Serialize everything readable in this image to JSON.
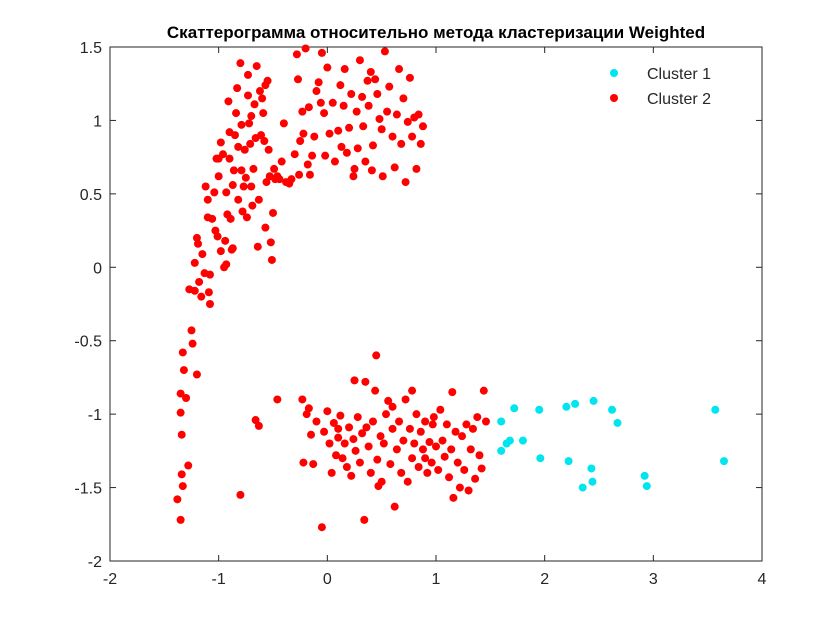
{
  "chart_data": {
    "type": "scatter",
    "title": "Скаттерограмма относительно метода кластеризации Weighted",
    "xlabel": "",
    "ylabel": "",
    "xlim": [
      -2,
      4
    ],
    "ylim": [
      -2,
      1.5
    ],
    "xticks": [
      -2,
      -1,
      0,
      1,
      2,
      3,
      4
    ],
    "xtick_labels": [
      "-2",
      "-1",
      "0",
      "1",
      "2",
      "3",
      "4"
    ],
    "yticks": [
      -2,
      -1.5,
      -1,
      -0.5,
      0,
      0.5,
      1,
      1.5
    ],
    "ytick_labels": [
      "-2",
      "-1.5",
      "-1",
      "-0.5",
      "0",
      "0.5",
      "1",
      "1.5"
    ],
    "grid": false,
    "legend_position": "top-right",
    "series": [
      {
        "name": "Cluster 1",
        "color": "#00e5ee",
        "points": [
          [
            1.6,
            -1.05
          ],
          [
            1.6,
            -1.25
          ],
          [
            1.65,
            -1.2
          ],
          [
            1.68,
            -1.18
          ],
          [
            1.72,
            -0.96
          ],
          [
            1.8,
            -1.18
          ],
          [
            1.95,
            -0.97
          ],
          [
            1.96,
            -1.3
          ],
          [
            2.2,
            -0.95
          ],
          [
            2.22,
            -1.32
          ],
          [
            2.28,
            -0.93
          ],
          [
            2.35,
            -1.5
          ],
          [
            2.43,
            -1.37
          ],
          [
            2.44,
            -1.46
          ],
          [
            2.45,
            -0.91
          ],
          [
            2.62,
            -0.97
          ],
          [
            2.67,
            -1.06
          ],
          [
            2.92,
            -1.42
          ],
          [
            2.94,
            -1.49
          ],
          [
            3.57,
            -0.97
          ],
          [
            3.65,
            -1.32
          ]
        ]
      },
      {
        "name": "Cluster 2",
        "color": "#ff0000",
        "points": [
          [
            -1.38,
            -1.58
          ],
          [
            -1.35,
            -1.72
          ],
          [
            -1.35,
            -0.86
          ],
          [
            -1.35,
            -0.99
          ],
          [
            -1.34,
            -1.14
          ],
          [
            -1.34,
            -1.41
          ],
          [
            -1.33,
            -1.49
          ],
          [
            -1.32,
            -0.7
          ],
          [
            -1.33,
            -0.58
          ],
          [
            -1.3,
            -0.89
          ],
          [
            -1.28,
            -1.35
          ],
          [
            -1.27,
            -0.15
          ],
          [
            -1.25,
            -0.43
          ],
          [
            -1.24,
            -0.52
          ],
          [
            -1.22,
            -0.16
          ],
          [
            -1.22,
            0.03
          ],
          [
            -1.2,
            -0.73
          ],
          [
            -1.2,
            0.2
          ],
          [
            -1.19,
            0.16
          ],
          [
            -1.18,
            -0.1
          ],
          [
            -1.16,
            -0.2
          ],
          [
            -1.15,
            0.09
          ],
          [
            -1.13,
            -0.04
          ],
          [
            -1.12,
            0.55
          ],
          [
            -1.1,
            0.46
          ],
          [
            -1.1,
            0.34
          ],
          [
            -1.09,
            -0.17
          ],
          [
            -1.08,
            -0.25
          ],
          [
            -1.08,
            -0.05
          ],
          [
            -1.06,
            0.33
          ],
          [
            -1.04,
            0.51
          ],
          [
            -1.03,
            0.25
          ],
          [
            -1.02,
            0.74
          ],
          [
            -1.01,
            0.21
          ],
          [
            -1.0,
            0.62
          ],
          [
            -1.0,
            0.74
          ],
          [
            -0.98,
            0.85
          ],
          [
            -0.98,
            0.11
          ],
          [
            -0.96,
            0.77
          ],
          [
            -0.95,
            0.0
          ],
          [
            -0.94,
            0.18
          ],
          [
            -0.93,
            0.02
          ],
          [
            -0.93,
            0.51
          ],
          [
            -0.92,
            0.36
          ],
          [
            -0.91,
            1.13
          ],
          [
            -0.9,
            0.92
          ],
          [
            -0.9,
            0.74
          ],
          [
            -0.89,
            0.33
          ],
          [
            -0.88,
            0.12
          ],
          [
            -0.87,
            0.56
          ],
          [
            -0.87,
            0.13
          ],
          [
            -0.86,
            0.66
          ],
          [
            -0.85,
            0.9
          ],
          [
            -0.84,
            1.05
          ],
          [
            -0.83,
            1.22
          ],
          [
            -0.82,
            0.46
          ],
          [
            -0.82,
            0.82
          ],
          [
            -0.8,
            1.39
          ],
          [
            -0.79,
            0.97
          ],
          [
            -0.79,
            0.66
          ],
          [
            -0.78,
            0.38
          ],
          [
            -0.77,
            0.55
          ],
          [
            -0.76,
            0.8
          ],
          [
            -0.75,
            0.61
          ],
          [
            -0.74,
            0.34
          ],
          [
            -0.73,
            1.31
          ],
          [
            -0.72,
            0.98
          ],
          [
            -0.71,
            0.84
          ],
          [
            -0.7,
            1.03
          ],
          [
            -0.7,
            0.55
          ],
          [
            -0.69,
            0.42
          ],
          [
            -0.68,
            0.67
          ],
          [
            -0.67,
            1.11
          ],
          [
            -0.66,
            0.88
          ],
          [
            -0.65,
            1.37
          ],
          [
            -0.64,
            0.14
          ],
          [
            -0.63,
            0.46
          ],
          [
            -0.62,
            1.2
          ],
          [
            -0.61,
            0.9
          ],
          [
            -0.6,
            1.15
          ],
          [
            -0.59,
            1.05
          ],
          [
            -0.58,
            0.86
          ],
          [
            -0.57,
            1.24
          ],
          [
            -0.57,
            0.27
          ],
          [
            -0.56,
            0.58
          ],
          [
            -0.55,
            1.27
          ],
          [
            -0.54,
            0.8
          ],
          [
            -0.53,
            0.62
          ],
          [
            -0.52,
            0.17
          ],
          [
            -0.51,
            0.05
          ],
          [
            -0.5,
            0.37
          ],
          [
            -0.49,
            0.67
          ],
          [
            -0.48,
            0.6
          ],
          [
            -0.46,
            0.62
          ],
          [
            -0.44,
            0.6
          ],
          [
            -0.42,
            0.72
          ],
          [
            -0.4,
            0.98
          ],
          [
            -0.38,
            0.58
          ],
          [
            -0.35,
            0.57
          ],
          [
            -0.33,
            0.6
          ],
          [
            -0.3,
            0.77
          ],
          [
            -0.28,
            1.45
          ],
          [
            -0.27,
            1.28
          ],
          [
            -0.26,
            0.63
          ],
          [
            -0.25,
            0.86
          ],
          [
            -0.23,
            1.06
          ],
          [
            -0.22,
            0.91
          ],
          [
            -0.2,
            1.49
          ],
          [
            -0.18,
            0.7
          ],
          [
            -0.17,
            1.09
          ],
          [
            -0.16,
            0.63
          ],
          [
            -0.14,
            0.76
          ],
          [
            -0.12,
            0.89
          ],
          [
            -0.1,
            1.2
          ],
          [
            -0.08,
            1.26
          ],
          [
            -0.06,
            1.12
          ],
          [
            -0.05,
            1.46
          ],
          [
            -0.03,
            1.05
          ],
          [
            -0.02,
            0.76
          ],
          [
            0.0,
            1.36
          ],
          [
            0.02,
            0.91
          ],
          [
            0.05,
            1.12
          ],
          [
            0.07,
            0.72
          ],
          [
            0.1,
            0.93
          ],
          [
            0.12,
            1.24
          ],
          [
            0.13,
            0.82
          ],
          [
            0.15,
            1.1
          ],
          [
            0.16,
            1.35
          ],
          [
            0.18,
            0.78
          ],
          [
            0.2,
            0.95
          ],
          [
            0.22,
            1.18
          ],
          [
            0.24,
            0.62
          ],
          [
            0.25,
            0.67
          ],
          [
            0.27,
            1.06
          ],
          [
            0.28,
            0.81
          ],
          [
            0.3,
            1.41
          ],
          [
            0.32,
            1.16
          ],
          [
            0.33,
            0.96
          ],
          [
            0.35,
            0.72
          ],
          [
            0.37,
            1.27
          ],
          [
            0.38,
            1.1
          ],
          [
            0.4,
            1.33
          ],
          [
            0.41,
            0.66
          ],
          [
            0.42,
            0.83
          ],
          [
            0.44,
            1.28
          ],
          [
            0.46,
            1.18
          ],
          [
            0.48,
            1.01
          ],
          [
            0.5,
            0.94
          ],
          [
            0.51,
            0.62
          ],
          [
            0.53,
            1.47
          ],
          [
            0.55,
            1.06
          ],
          [
            0.57,
            1.23
          ],
          [
            0.6,
            0.89
          ],
          [
            0.62,
            0.68
          ],
          [
            0.64,
            1.04
          ],
          [
            0.66,
            1.35
          ],
          [
            0.68,
            0.84
          ],
          [
            0.7,
            1.15
          ],
          [
            0.72,
            0.58
          ],
          [
            0.74,
            0.99
          ],
          [
            0.76,
            1.29
          ],
          [
            0.78,
            0.89
          ],
          [
            0.8,
            1.02
          ],
          [
            0.82,
            0.67
          ],
          [
            0.84,
            1.04
          ],
          [
            0.86,
            0.84
          ],
          [
            0.88,
            0.96
          ],
          [
            -0.73,
            1.17
          ],
          [
            -0.66,
            -1.04
          ],
          [
            -0.63,
            -1.08
          ],
          [
            -0.8,
            -1.55
          ],
          [
            -0.46,
            -0.9
          ],
          [
            -0.23,
            -0.9
          ],
          [
            -0.22,
            -1.33
          ],
          [
            -0.19,
            -1.0
          ],
          [
            -0.17,
            -0.96
          ],
          [
            -0.15,
            -1.14
          ],
          [
            -0.13,
            -1.34
          ],
          [
            -0.1,
            -1.05
          ],
          [
            -0.05,
            -1.77
          ],
          [
            -0.03,
            -1.12
          ],
          [
            0.0,
            -0.98
          ],
          [
            0.02,
            -1.2
          ],
          [
            0.04,
            -1.4
          ],
          [
            0.06,
            -1.06
          ],
          [
            0.08,
            -1.28
          ],
          [
            0.1,
            -1.16
          ],
          [
            0.12,
            -1.01
          ],
          [
            0.14,
            -1.3
          ],
          [
            0.16,
            -1.2
          ],
          [
            0.18,
            -1.36
          ],
          [
            0.2,
            -1.09
          ],
          [
            0.22,
            -1.42
          ],
          [
            0.24,
            -1.17
          ],
          [
            0.25,
            -0.77
          ],
          [
            0.26,
            -1.25
          ],
          [
            0.28,
            -1.02
          ],
          [
            0.3,
            -1.33
          ],
          [
            0.32,
            -1.13
          ],
          [
            0.34,
            -1.72
          ],
          [
            0.36,
            -1.09
          ],
          [
            0.38,
            -1.22
          ],
          [
            0.4,
            -1.4
          ],
          [
            0.42,
            -1.05
          ],
          [
            0.44,
            -0.84
          ],
          [
            0.46,
            -1.31
          ],
          [
            0.47,
            -1.49
          ],
          [
            0.49,
            -1.15
          ],
          [
            0.5,
            -1.46
          ],
          [
            0.52,
            -1.2
          ],
          [
            0.54,
            -1.0
          ],
          [
            0.56,
            -0.91
          ],
          [
            0.58,
            -1.34
          ],
          [
            0.6,
            -1.1
          ],
          [
            0.62,
            -1.63
          ],
          [
            0.64,
            -1.24
          ],
          [
            0.66,
            -1.05
          ],
          [
            0.68,
            -1.4
          ],
          [
            0.7,
            -1.18
          ],
          [
            0.72,
            -0.9
          ],
          [
            0.74,
            -1.46
          ],
          [
            0.76,
            -1.1
          ],
          [
            0.78,
            -1.3
          ],
          [
            0.8,
            -1.2
          ],
          [
            0.82,
            -1.0
          ],
          [
            0.84,
            -1.36
          ],
          [
            0.86,
            -1.12
          ],
          [
            0.88,
            -1.24
          ],
          [
            0.9,
            -1.05
          ],
          [
            0.92,
            -1.4
          ],
          [
            0.94,
            -1.19
          ],
          [
            0.96,
            -1.33
          ],
          [
            0.98,
            -1.02
          ],
          [
            1.0,
            -1.22
          ],
          [
            1.02,
            -1.38
          ],
          [
            1.04,
            -0.97
          ],
          [
            1.06,
            -1.18
          ],
          [
            1.08,
            -1.29
          ],
          [
            1.1,
            -1.07
          ],
          [
            1.12,
            -1.43
          ],
          [
            1.14,
            -1.24
          ],
          [
            1.16,
            -1.57
          ],
          [
            1.18,
            -1.12
          ],
          [
            1.2,
            -1.33
          ],
          [
            1.22,
            -1.5
          ],
          [
            1.24,
            -1.15
          ],
          [
            1.26,
            -1.38
          ],
          [
            1.28,
            -1.07
          ],
          [
            1.3,
            -1.52
          ],
          [
            1.32,
            -1.24
          ],
          [
            1.34,
            -1.1
          ],
          [
            1.36,
            -1.44
          ],
          [
            1.38,
            -1.02
          ],
          [
            1.4,
            -1.28
          ],
          [
            1.42,
            -1.37
          ],
          [
            1.44,
            -0.84
          ],
          [
            1.46,
            -1.05
          ],
          [
            0.1,
            -1.1
          ],
          [
            0.45,
            -0.6
          ],
          [
            0.35,
            -0.78
          ],
          [
            0.6,
            -0.95
          ],
          [
            0.78,
            -0.84
          ],
          [
            0.9,
            -1.3
          ],
          [
            0.97,
            -1.07
          ],
          [
            1.15,
            -0.85
          ]
        ]
      }
    ]
  }
}
